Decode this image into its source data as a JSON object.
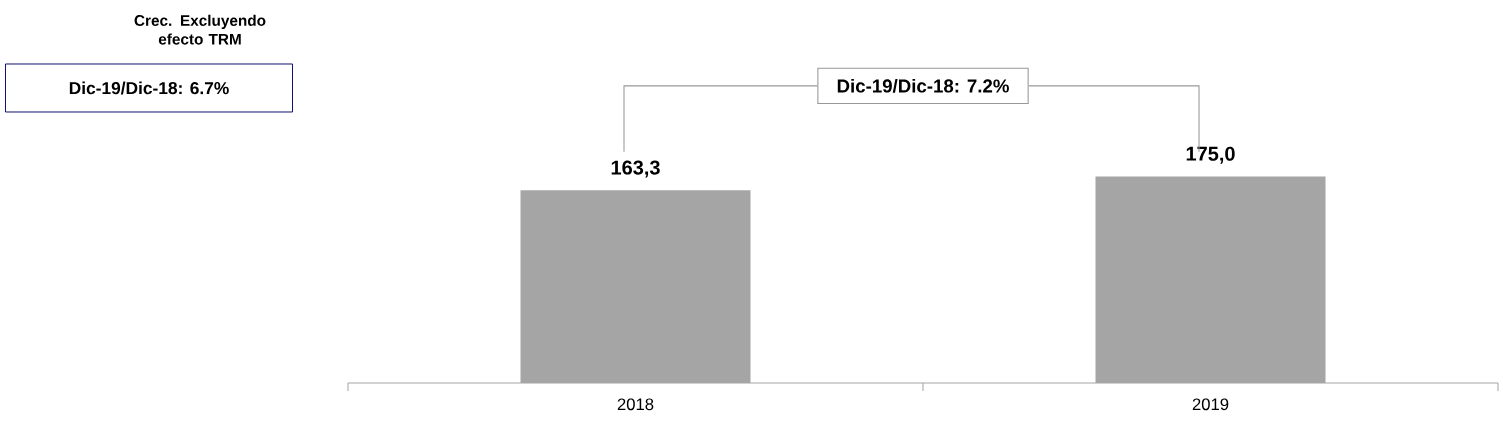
{
  "chart_data": {
    "type": "bar",
    "categories": [
      "2018",
      "2019"
    ],
    "values": [
      163.3,
      175.0
    ],
    "color": "#a5a5a5",
    "value_labels": [
      "163,3",
      "175,0"
    ],
    "tick_labels": "x",
    "annotations": [
      "Crec. Excluyendo efecto TRM",
      "Dic-19/Dic-18: 6.7%",
      "Dic-19/Dic-18: 7.2%"
    ]
  }
}
